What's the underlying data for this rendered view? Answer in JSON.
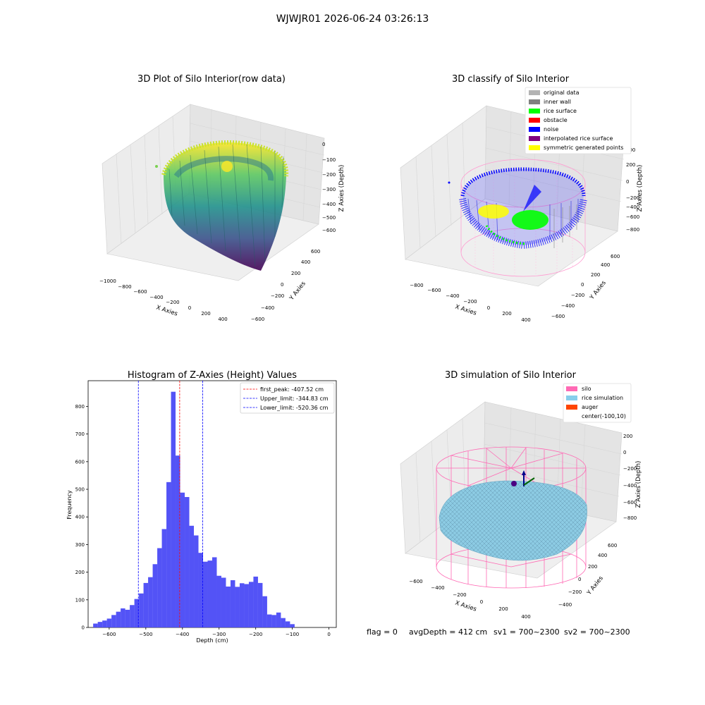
{
  "suptitle": "WJWJR01 2026-06-24 03:26:13",
  "footer": {
    "flag": "flag = 0",
    "avg_depth": "avgDepth = 412 cm",
    "sv1": "sv1 = 700~2300",
    "sv2": "sv2 = 700~2300"
  },
  "chart_data": [
    {
      "type": "scatter",
      "title": "3D Plot of Silo Interior(row data)",
      "xlabel": "X Axies",
      "ylabel": "Y Axies",
      "zlabel": "Z Axies (Depth)",
      "x_ticks": [
        "−1000",
        "−800",
        "−600",
        "−400",
        "−200",
        "0",
        "200",
        "400"
      ],
      "y_ticks": [
        "−600",
        "−400",
        "−200",
        "0",
        "200",
        "400",
        "600"
      ],
      "z_ticks": [
        "0",
        "−100",
        "−200",
        "−300",
        "−400",
        "−500",
        "−600"
      ],
      "colormap": "viridis"
    },
    {
      "type": "scatter",
      "title": "3D classify of Silo Interior",
      "xlabel": "X Axies",
      "ylabel": "Y Axies",
      "zlabel": "Z Axies (Depth)",
      "x_ticks": [
        "−800",
        "−600",
        "−400",
        "−200",
        "0",
        "200",
        "400"
      ],
      "y_ticks": [
        "−600",
        "−400",
        "−200",
        "0",
        "200",
        "400",
        "600"
      ],
      "z_ticks": [
        "400",
        "200",
        "0",
        "−200",
        "−400",
        "−600",
        "−800"
      ],
      "legend": [
        {
          "label": "original data",
          "color": "#b3b3b3"
        },
        {
          "label": "inner wall",
          "color": "#808080"
        },
        {
          "label": "rice surface",
          "color": "#00ff00"
        },
        {
          "label": "obstacle",
          "color": "#ff0000"
        },
        {
          "label": "noise",
          "color": "#0000ff"
        },
        {
          "label": "interpolated rice surface",
          "color": "#800080"
        },
        {
          "label": "symmetric generated points",
          "color": "#ffff00"
        }
      ],
      "legend_position": "top-right"
    },
    {
      "type": "bar",
      "title": "Histogram of Z-Axies (Height) Values",
      "xlabel": "Depth (cm)",
      "ylabel": "Frequency",
      "bin_width": 12.5,
      "xlim": [
        -657.5,
        20
      ],
      "ylim": [
        0,
        893
      ],
      "x_ticks": [
        -600,
        -500,
        -400,
        -300,
        -200,
        -100,
        0
      ],
      "x_tick_labels": [
        "−600",
        "−500",
        "−400",
        "−300",
        "−200",
        "−100",
        "0"
      ],
      "y_ticks": [
        0,
        100,
        200,
        300,
        400,
        500,
        600,
        700,
        800
      ],
      "bar_color": "#4a4af5",
      "bins": [
        {
          "x": -637.5,
          "v": 14
        },
        {
          "x": -625,
          "v": 20
        },
        {
          "x": -612.5,
          "v": 25
        },
        {
          "x": -600,
          "v": 32
        },
        {
          "x": -587.5,
          "v": 45
        },
        {
          "x": -575,
          "v": 57
        },
        {
          "x": -562.5,
          "v": 69
        },
        {
          "x": -550,
          "v": 64
        },
        {
          "x": -537.5,
          "v": 81
        },
        {
          "x": -525,
          "v": 103
        },
        {
          "x": -512.5,
          "v": 123
        },
        {
          "x": -500,
          "v": 161
        },
        {
          "x": -487.5,
          "v": 182
        },
        {
          "x": -475,
          "v": 229
        },
        {
          "x": -462.5,
          "v": 287
        },
        {
          "x": -450,
          "v": 356
        },
        {
          "x": -437.5,
          "v": 526
        },
        {
          "x": -425,
          "v": 853
        },
        {
          "x": -412.5,
          "v": 622
        },
        {
          "x": -400,
          "v": 488
        },
        {
          "x": -387.5,
          "v": 472
        },
        {
          "x": -375,
          "v": 368
        },
        {
          "x": -362.5,
          "v": 333
        },
        {
          "x": -350,
          "v": 270
        },
        {
          "x": -337.5,
          "v": 238
        },
        {
          "x": -325,
          "v": 242
        },
        {
          "x": -312.5,
          "v": 254
        },
        {
          "x": -300,
          "v": 187
        },
        {
          "x": -287.5,
          "v": 180
        },
        {
          "x": -275,
          "v": 148
        },
        {
          "x": -262.5,
          "v": 171
        },
        {
          "x": -250,
          "v": 147
        },
        {
          "x": -237.5,
          "v": 160
        },
        {
          "x": -225,
          "v": 157
        },
        {
          "x": -212.5,
          "v": 165
        },
        {
          "x": -200,
          "v": 184
        },
        {
          "x": -187.5,
          "v": 161
        },
        {
          "x": -175,
          "v": 113
        },
        {
          "x": -162.5,
          "v": 47
        },
        {
          "x": -150,
          "v": 45
        },
        {
          "x": -137.5,
          "v": 54
        },
        {
          "x": -125,
          "v": 34
        },
        {
          "x": -112.5,
          "v": 22
        },
        {
          "x": -100,
          "v": 12
        }
      ],
      "vlines": [
        {
          "x": -407.52,
          "color": "#ff0000",
          "label": "first_peak: -407.52 cm"
        },
        {
          "x": -344.83,
          "color": "#0000ff",
          "label": "Upper_limit: -344.83 cm"
        },
        {
          "x": -520.36,
          "color": "#0000ff",
          "label": "Lower_limit: -520.36 cm"
        }
      ],
      "legend_position": "top-right"
    },
    {
      "type": "scatter",
      "title": "3D simulation of Silo Interior",
      "xlabel": "X Axies",
      "ylabel": "Y Axies",
      "zlabel": "Z Axies (Depth)",
      "x_ticks": [
        "−600",
        "−400",
        "−200",
        "0",
        "200",
        "400"
      ],
      "y_ticks": [
        "−400",
        "−200",
        "0",
        "200",
        "400",
        "600"
      ],
      "z_ticks": [
        "200",
        "0",
        "−200",
        "−400",
        "−600",
        "−800"
      ],
      "legend": [
        {
          "label": "silo",
          "color": "#ff69b4"
        },
        {
          "label": "rice simulation",
          "color": "#87ceeb"
        },
        {
          "label": "auger",
          "color": "#ff4500"
        },
        {
          "label": "center(-100,10)",
          "color": ""
        }
      ],
      "legend_position": "top-right"
    }
  ]
}
